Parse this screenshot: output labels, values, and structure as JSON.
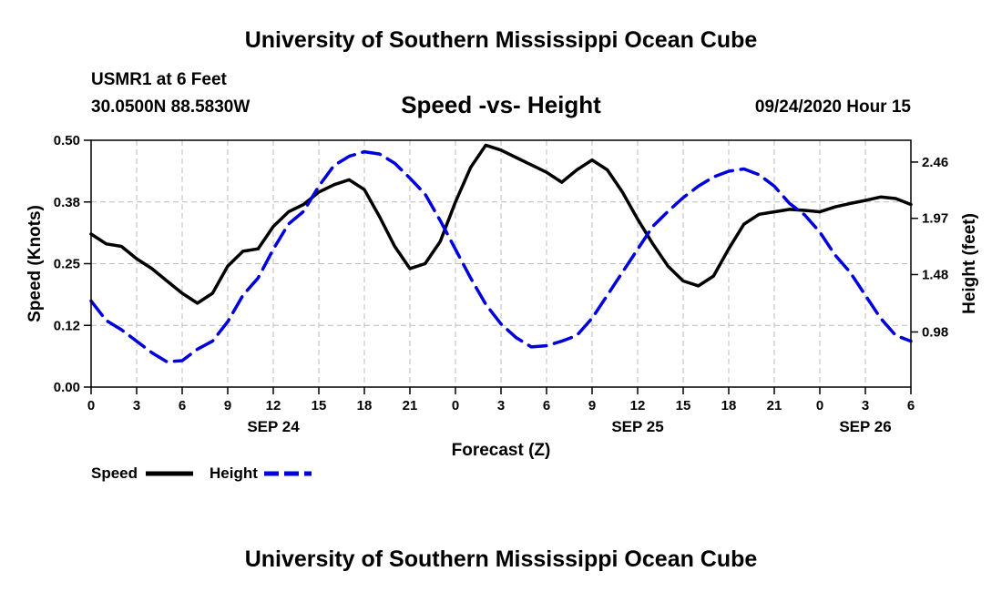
{
  "header": {
    "top_title": "University of Southern Mississippi Ocean Cube",
    "station": "USMR1 at 6 Feet",
    "coords": "30.0500N 88.5830W",
    "datetime": "09/24/2020 Hour 15",
    "bottom_title": "University of Southern Mississippi Ocean Cube"
  },
  "chart_data": {
    "type": "line",
    "title": "Speed -vs- Height",
    "xlabel": "Forecast (Z)",
    "ylabel": "Speed (Knots)",
    "y2label": "Height (feet)",
    "grid": true,
    "x_range": [
      0,
      54
    ],
    "x_unit": "hours from 00Z Sep 24",
    "x_ticks": [
      0,
      3,
      6,
      9,
      12,
      15,
      18,
      21,
      24,
      27,
      30,
      33,
      36,
      39,
      42,
      45,
      48,
      51,
      54
    ],
    "x_tick_labels": [
      "0",
      "3",
      "6",
      "9",
      "12",
      "15",
      "18",
      "21",
      "0",
      "3",
      "6",
      "9",
      "12",
      "15",
      "18",
      "21",
      "0",
      "3",
      "6"
    ],
    "day_labels": [
      {
        "x": 12,
        "label": "SEP 24"
      },
      {
        "x": 36,
        "label": "SEP 25"
      },
      {
        "x": 51,
        "label": "SEP 26"
      }
    ],
    "ylim": [
      0,
      0.5
    ],
    "y_ticks": [
      0.0,
      0.125,
      0.25,
      0.375,
      0.5
    ],
    "y_tick_labels": [
      "0.00",
      "0.12",
      "0.25",
      "0.38",
      "0.50"
    ],
    "y2lim": [
      0.5,
      2.65
    ],
    "y2_ticks": [
      0.98,
      1.48,
      1.97,
      2.46
    ],
    "y2_tick_labels": [
      "0.98",
      "1.48",
      "1.97",
      "2.46"
    ],
    "series": [
      {
        "name": "Speed",
        "color": "#000000",
        "dash": "solid",
        "axis": "left",
        "x": [
          0,
          1,
          2,
          3,
          4,
          5,
          6,
          7,
          8,
          9,
          10,
          11,
          12,
          13,
          14,
          15,
          16,
          17,
          18,
          19,
          20,
          21,
          22,
          23,
          24,
          25,
          26,
          27,
          28,
          29,
          30,
          31,
          32,
          33,
          34,
          35,
          36,
          37,
          38,
          39,
          40,
          41,
          42,
          43,
          44,
          45,
          46,
          47,
          48,
          49,
          50,
          51,
          52,
          53,
          54
        ],
        "values": [
          0.31,
          0.29,
          0.285,
          0.26,
          0.24,
          0.215,
          0.19,
          0.17,
          0.19,
          0.245,
          0.275,
          0.28,
          0.325,
          0.355,
          0.37,
          0.395,
          0.41,
          0.42,
          0.4,
          0.345,
          0.285,
          0.24,
          0.25,
          0.295,
          0.375,
          0.445,
          0.49,
          0.48,
          0.465,
          0.45,
          0.435,
          0.415,
          0.44,
          0.46,
          0.44,
          0.395,
          0.34,
          0.29,
          0.245,
          0.215,
          0.205,
          0.225,
          0.28,
          0.33,
          0.35,
          0.355,
          0.36,
          0.358,
          0.355,
          0.365,
          0.372,
          0.378,
          0.385,
          0.382,
          0.37
        ]
      },
      {
        "name": "Height",
        "color": "#0000dd",
        "dash": "dashed",
        "axis": "right",
        "x": [
          0,
          1,
          2,
          3,
          4,
          5,
          6,
          7,
          8,
          9,
          10,
          11,
          12,
          13,
          14,
          15,
          16,
          17,
          18,
          19,
          20,
          21,
          22,
          23,
          24,
          25,
          26,
          27,
          28,
          29,
          30,
          31,
          32,
          33,
          34,
          35,
          36,
          37,
          38,
          39,
          40,
          41,
          42,
          43,
          44,
          45,
          46,
          47,
          48,
          49,
          50,
          51,
          52,
          53,
          54
        ],
        "values": [
          1.25,
          1.08,
          1.0,
          0.9,
          0.8,
          0.72,
          0.73,
          0.83,
          0.9,
          1.07,
          1.3,
          1.45,
          1.7,
          1.92,
          2.03,
          2.25,
          2.43,
          2.51,
          2.55,
          2.53,
          2.45,
          2.32,
          2.18,
          1.95,
          1.7,
          1.45,
          1.22,
          1.05,
          0.93,
          0.85,
          0.86,
          0.9,
          0.95,
          1.1,
          1.3,
          1.5,
          1.7,
          1.9,
          2.03,
          2.15,
          2.25,
          2.33,
          2.38,
          2.4,
          2.35,
          2.25,
          2.1,
          2.0,
          1.85,
          1.65,
          1.5,
          1.3,
          1.1,
          0.95,
          0.9
        ]
      }
    ]
  }
}
